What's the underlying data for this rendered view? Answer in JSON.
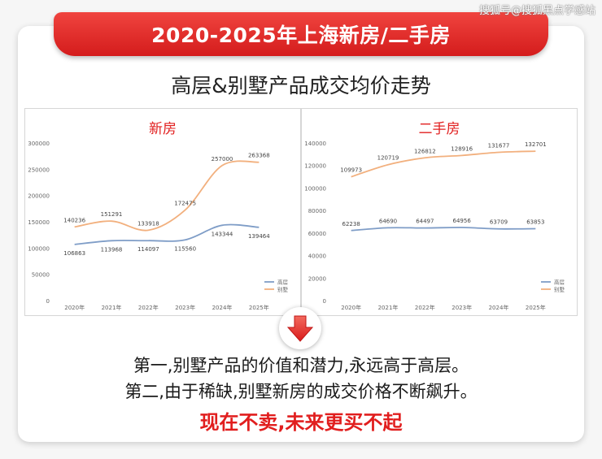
{
  "watermark": "搜狐号@搜狐黑点学感站",
  "banner_title": "2020-2025年上海新房/二手房",
  "subtitle": "高层&别墅产品成交均价走势",
  "colors": {
    "high_rise": "#7f9dc7",
    "villa": "#f2b07e",
    "accent": "#e11e1e"
  },
  "chart_data": [
    {
      "type": "line",
      "title": "新房",
      "categories": [
        "2020年",
        "2021年",
        "2022年",
        "2023年",
        "2024年",
        "2025年"
      ],
      "ylim": [
        0,
        300000
      ],
      "yticks": [
        "0",
        "50000",
        "100000",
        "150000",
        "200000",
        "250000",
        "300000"
      ],
      "series": [
        {
          "name": "高层",
          "values": [
            106863,
            113968,
            114097,
            115560,
            143344,
            139464
          ]
        },
        {
          "name": "别墅",
          "values": [
            140236,
            151291,
            133918,
            172475,
            257000,
            263368
          ]
        }
      ],
      "legend": "bottom-right",
      "grid": false
    },
    {
      "type": "line",
      "title": "二手房",
      "categories": [
        "2020年",
        "2021年",
        "2022年",
        "2023年",
        "2024年",
        "2025年"
      ],
      "ylim": [
        0,
        140000
      ],
      "yticks": [
        "0",
        "20000",
        "40000",
        "60000",
        "80000",
        "100000",
        "120000",
        "140000"
      ],
      "series": [
        {
          "name": "高层",
          "values": [
            62238,
            64690,
            64497,
            64956,
            63709,
            63853
          ]
        },
        {
          "name": "别墅",
          "values": [
            109973,
            120719,
            126812,
            128916,
            131677,
            132701
          ]
        }
      ],
      "legend": "bottom-right",
      "grid": false
    }
  ],
  "conclusion": {
    "line1": "第一,别墅产品的价值和潜力,永远高于高层。",
    "line2": "第二,由于稀缺,别墅新房的成交价格不断飙升。",
    "line3": "现在不卖,未来更买不起"
  }
}
